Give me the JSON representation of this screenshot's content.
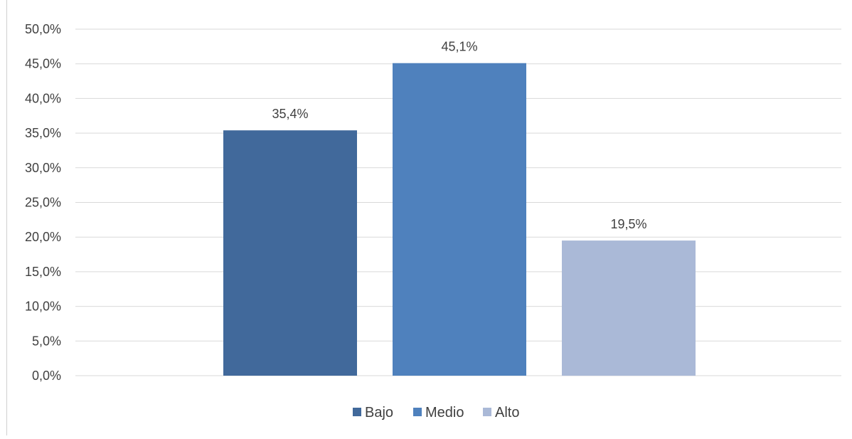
{
  "chart_data": {
    "type": "bar",
    "title": "",
    "xlabel": "",
    "ylabel": "",
    "ylim": [
      0,
      50
    ],
    "y_tick_step": 5,
    "y_tick_labels": [
      "0,0%",
      "5,0%",
      "10,0%",
      "15,0%",
      "20,0%",
      "25,0%",
      "30,0%",
      "35,0%",
      "40,0%",
      "45,0%",
      "50,0%"
    ],
    "grid": true,
    "legend_position": "bottom",
    "series": [
      {
        "name": "Bajo",
        "value": 35.4,
        "label": "35,4%",
        "color": "#41699b"
      },
      {
        "name": "Medio",
        "value": 45.1,
        "label": "45,1%",
        "color": "#4f81bd"
      },
      {
        "name": "Alto",
        "value": 19.5,
        "label": "19,5%",
        "color": "#aab9d7"
      }
    ]
  }
}
